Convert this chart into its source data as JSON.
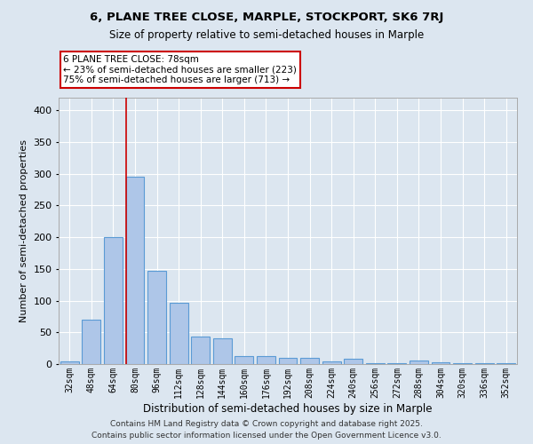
{
  "title": "6, PLANE TREE CLOSE, MARPLE, STOCKPORT, SK6 7RJ",
  "subtitle": "Size of property relative to semi-detached houses in Marple",
  "xlabel": "Distribution of semi-detached houses by size in Marple",
  "ylabel": "Number of semi-detached properties",
  "categories": [
    "32sqm",
    "48sqm",
    "64sqm",
    "80sqm",
    "96sqm",
    "112sqm",
    "128sqm",
    "144sqm",
    "160sqm",
    "176sqm",
    "192sqm",
    "208sqm",
    "224sqm",
    "240sqm",
    "256sqm",
    "272sqm",
    "288sqm",
    "304sqm",
    "320sqm",
    "336sqm",
    "352sqm"
  ],
  "values": [
    4,
    70,
    200,
    295,
    147,
    96,
    44,
    40,
    13,
    13,
    10,
    10,
    4,
    9,
    2,
    1,
    5,
    3,
    1,
    1,
    1
  ],
  "bar_color": "#aec6e8",
  "bar_edge_color": "#5b9bd5",
  "background_color": "#dce6f0",
  "grid_color": "#ffffff",
  "vline_x_index": 3,
  "vline_color": "#cc0000",
  "annotation_text": "6 PLANE TREE CLOSE: 78sqm\n← 23% of semi-detached houses are smaller (223)\n75% of semi-detached houses are larger (713) →",
  "annotation_box_color": "#cc0000",
  "annotation_text_color": "#000000",
  "ylim": [
    0,
    420
  ],
  "yticks": [
    0,
    50,
    100,
    150,
    200,
    250,
    300,
    350,
    400
  ],
  "footer_line1": "Contains HM Land Registry data © Crown copyright and database right 2025.",
  "footer_line2": "Contains public sector information licensed under the Open Government Licence v3.0."
}
